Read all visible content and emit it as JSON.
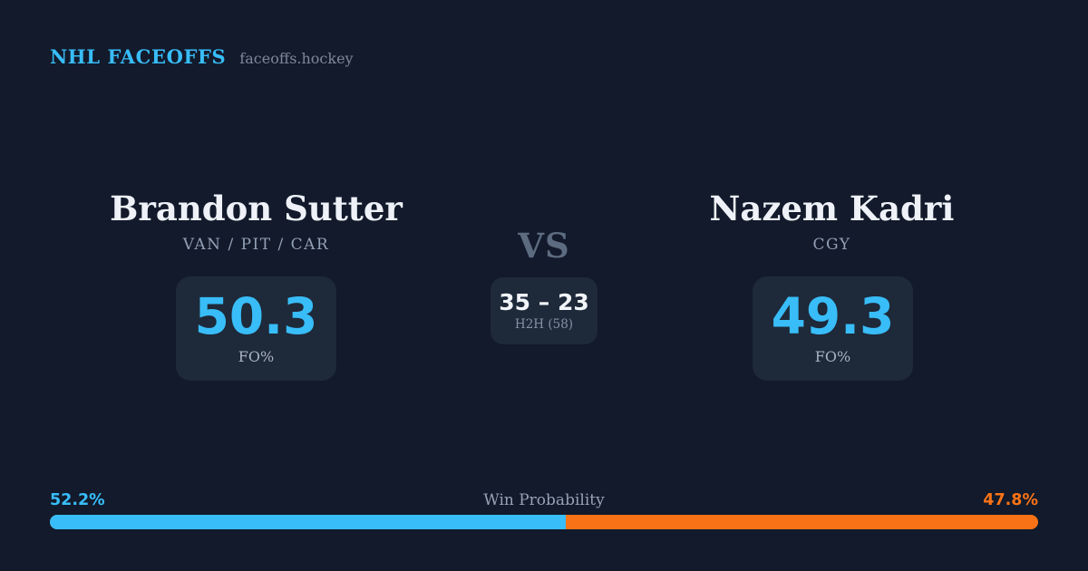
{
  "theme": {
    "background": "#121a2b",
    "card": "#1e2939",
    "accent_blue": "#38bdf8",
    "accent_orange": "#f97316",
    "text_primary": "#eef2f8",
    "text_muted": "#94a0b5"
  },
  "header": {
    "brand": "NHL FACEOFFS",
    "site": "faceoffs.hockey"
  },
  "matchup": {
    "player1": {
      "name": "Brandon Sutter",
      "teams": "VAN / PIT / CAR",
      "fo_value": "50.3",
      "fo_label": "FO%"
    },
    "vs_label": "VS",
    "h2h": {
      "score": "35 – 23",
      "label": "H2H (58)"
    },
    "player2": {
      "name": "Nazem Kadri",
      "teams": "CGY",
      "fo_value": "49.3",
      "fo_label": "FO%"
    }
  },
  "win_probability": {
    "label": "Win Probability",
    "left_pct_text": "52.2%",
    "right_pct_text": "47.8%",
    "left_value": 52.2,
    "right_value": 47.8
  }
}
